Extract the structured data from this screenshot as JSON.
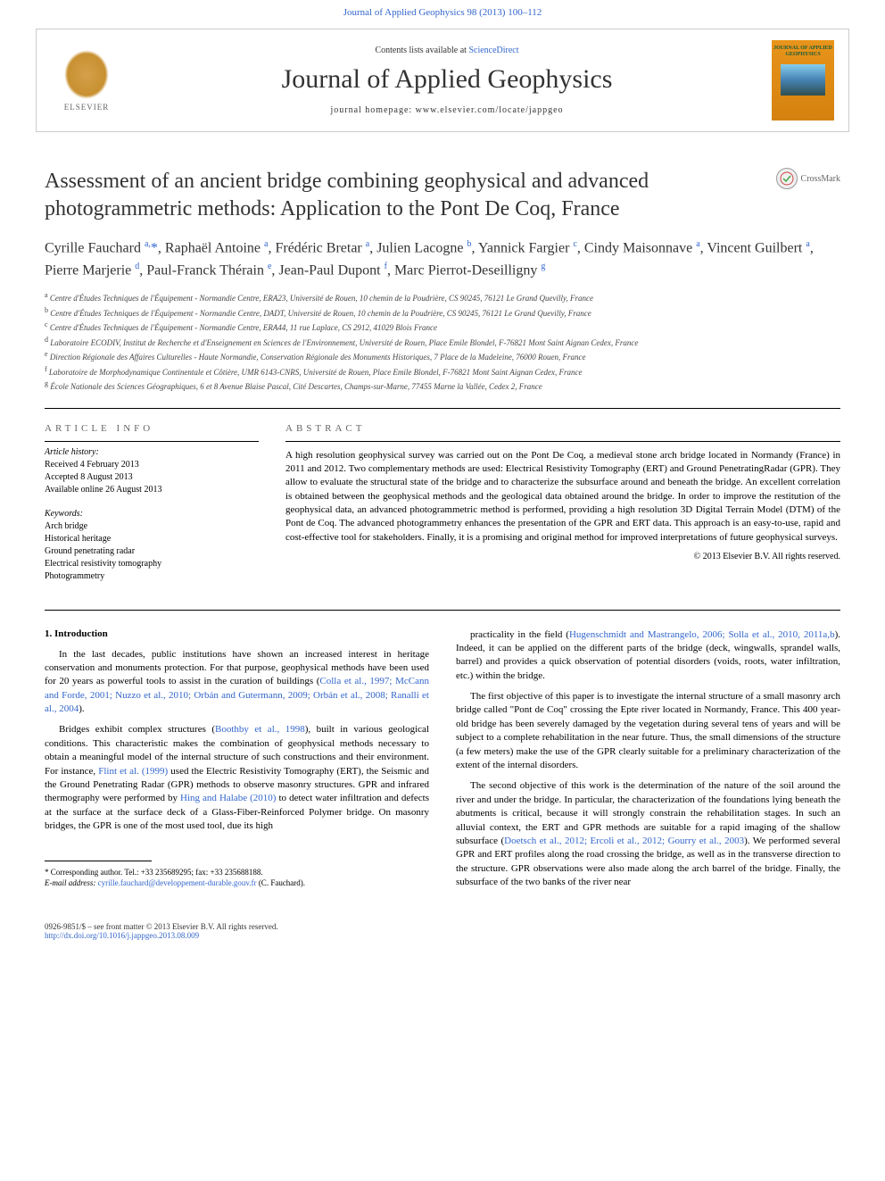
{
  "header": {
    "top_link_text": "Journal of Applied Geophysics 98 (2013) 100–112",
    "contents_text": "Contents lists available at",
    "contents_link": "ScienceDirect",
    "journal_name": "Journal of Applied Geophysics",
    "homepage_label": "journal homepage: ",
    "homepage_url": "www.elsevier.com/locate/jappgeo",
    "publisher_name": "ELSEVIER",
    "cover_title": "JOURNAL OF APPLIED GEOPHYSICS"
  },
  "crossmark": {
    "label": "CrossMark"
  },
  "article": {
    "title": "Assessment of an ancient bridge combining geophysical and advanced photogrammetric methods: Application to the Pont De Coq, France",
    "authors_html": "Cyrille Fauchard <sup>a,</sup><span class='star'>*</span>, Raphaël Antoine <sup>a</sup>, Frédéric Bretar <sup>a</sup>, Julien Lacogne <sup>b</sup>, Yannick Fargier <sup>c</sup>, Cindy Maisonnave <sup>a</sup>, Vincent Guilbert <sup>a</sup>, Pierre Marjerie <sup>d</sup>, Paul-Franck Thérain <sup>e</sup>, Jean-Paul Dupont <sup>f</sup>, Marc Pierrot-Deseilligny <sup>g</sup>",
    "affiliations": [
      {
        "sup": "a",
        "text": "Centre d'Études Techniques de l'Équipement - Normandie Centre, ERA23, Université de Rouen, 10 chemin de la Poudrière, CS 90245, 76121 Le Grand Quevilly, France"
      },
      {
        "sup": "b",
        "text": "Centre d'Études Techniques de l'Équipement - Normandie Centre, DADT, Université de Rouen, 10 chemin de la Poudrière, CS 90245, 76121 Le Grand Quevilly, France"
      },
      {
        "sup": "c",
        "text": "Centre d'Études Techniques de l'Équipement - Normandie Centre, ERA44, 11 rue Laplace, CS 2912, 41029 Blois France"
      },
      {
        "sup": "d",
        "text": "Laboratoire ECODIV, Institut de Recherche et d'Enseignement en Sciences de l'Environnement, Université de Rouen, Place Emile Blondel, F-76821 Mont Saint Aignan Cedex, France"
      },
      {
        "sup": "e",
        "text": "Direction Régionale des Affaires Culturelles - Haute Normandie, Conservation Régionale des Monuments Historiques, 7 Place de la Madeleine, 76000 Rouen, France"
      },
      {
        "sup": "f",
        "text": "Laboratoire de Morphodynamique Continentale et Côtière, UMR 6143-CNRS, Université de Rouen, Place Emile Blondel, F-76821 Mont Saint Aignan Cedex, France"
      },
      {
        "sup": "g",
        "text": "École Nationale des Sciences Géographiques, 6 et 8 Avenue Blaise Pascal, Cité Descartes, Champs-sur-Marne, 77455 Marne la Vallée, Cedex 2, France"
      }
    ]
  },
  "article_info": {
    "section_label": "article info",
    "history_heading": "Article history:",
    "history": [
      "Received 4 February 2013",
      "Accepted 8 August 2013",
      "Available online 26 August 2013"
    ],
    "keywords_heading": "Keywords:",
    "keywords": [
      "Arch bridge",
      "Historical heritage",
      "Ground penetrating radar",
      "Electrical resistivity tomography",
      "Photogrammetry"
    ]
  },
  "abstract": {
    "section_label": "abstract",
    "text": "A high resolution geophysical survey was carried out on the Pont De Coq, a medieval stone arch bridge located in Normandy (France) in 2011 and 2012. Two complementary methods are used: Electrical Resistivity Tomography (ERT) and Ground PenetratingRadar (GPR). They allow to evaluate the structural state of the bridge and to characterize the subsurface around and beneath the bridge. An excellent correlation is obtained between the geophysical methods and the geological data obtained around the bridge. In order to improve the restitution of the geophysical data, an advanced photogrammetric method is performed, providing a high resolution 3D Digital Terrain Model (DTM) of the Pont de Coq. The advanced photogrammetry enhances the presentation of the GPR and ERT data. This approach is an easy-to-use, rapid and cost-effective tool for stakeholders. Finally, it is a promising and original method for improved interpretations of future geophysical surveys.",
    "copyright": "© 2013 Elsevier B.V. All rights reserved."
  },
  "body": {
    "intro_heading": "1. Introduction",
    "left_paragraphs": [
      "In the last decades, public institutions have shown an increased interest in heritage conservation and monuments protection. For that purpose, geophysical methods have been used for 20 years as powerful tools to assist in the curation of buildings (<span class='ref-link'>Colla et al., 1997; McCann and Forde, 2001; Nuzzo et al., 2010; Orbán and Gutermann, 2009; Orbán et al., 2008; Ranalli et al., 2004</span>).",
      "Bridges exhibit complex structures (<span class='ref-link'>Boothby et al., 1998</span>), built in various geological conditions. This characteristic makes the combination of geophysical methods necessary to obtain a meaningful model of the internal structure of such constructions and their environment. For instance, <span class='ref-link'>Flint et al. (1999)</span> used the Electric Resistivity Tomography (ERT), the Seismic and the Ground Penetrating Radar (GPR) methods to observe masonry structures. GPR and infrared thermography were performed by <span class='ref-link'>Hing and Halabe (2010)</span> to detect water infiltration and defects at the surface at the surface deck of a Glass-Fiber-Reinforced Polymer bridge. On masonry bridges, the GPR is one of the most used tool, due its high"
    ],
    "right_paragraphs": [
      "practicality in the field (<span class='ref-link'>Hugenschmidt and Mastrangelo, 2006; Solla et al., 2010, 2011a,b</span>). Indeed, it can be applied on the different parts of the bridge (deck, wingwalls, sprandel walls, barrel) and provides a quick observation of potential disorders (voids, roots, water infiltration, etc.) within the bridge.",
      "The first objective of this paper is to investigate the internal structure of a small masonry arch bridge called \"Pont de Coq\" crossing the Epte river located in Normandy, France. This 400 year-old bridge has been severely damaged by the vegetation during several tens of years and will be subject to a complete rehabilitation in the near future. Thus, the small dimensions of the structure (a few meters) make the use of the GPR clearly suitable for a preliminary characterization of the extent of the internal disorders.",
      "The second objective of this work is the determination of the nature of the soil around the river and under the bridge. In particular, the characterization of the foundations lying beneath the abutments is critical, because it will strongly constrain the rehabilitation stages. In such an alluvial context, the ERT and GPR methods are suitable for a rapid imaging of the shallow subsurface (<span class='ref-link'>Doetsch et al., 2012; Ercoli et al., 2012; Gourry et al., 2003</span>). We performed several GPR and ERT profiles along the road crossing the bridge, as well as in the transverse direction to the structure. GPR observations were also made along the arch barrel of the bridge. Finally, the subsurface of the two banks of the river near"
    ]
  },
  "footnote": {
    "corresponding": "* Corresponding author. Tel.: +33 235689295; fax: +33 235688188.",
    "email_label": "E-mail address:",
    "email": "cyrille.fauchard@developpement-durable.gouv.fr",
    "email_suffix": "(C. Fauchard)."
  },
  "footer": {
    "issn": "0926-9851/$ – see front matter © 2013 Elsevier B.V. All rights reserved.",
    "doi": "http://dx.doi.org/10.1016/j.jappgeo.2013.08.009"
  },
  "colors": {
    "link": "#3366cc",
    "text": "#000000",
    "elsevier_orange": "#d4a04a",
    "cover_orange": "#e8941a",
    "cover_green": "#1a5c3a"
  },
  "typography": {
    "title_fontsize": 24,
    "journal_name_fontsize": 30,
    "authors_fontsize": 16,
    "body_fontsize": 11,
    "affiliation_fontsize": 9,
    "footnote_fontsize": 9
  }
}
